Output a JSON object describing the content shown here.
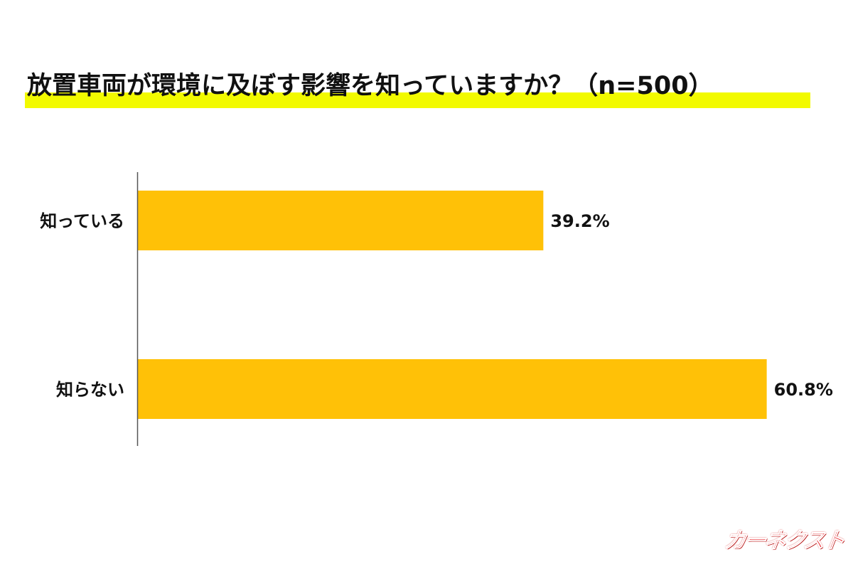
{
  "title": "放置車両が環境に及ぼす影響を知っていますか？（n=500）",
  "logo_text": "カーネクスト",
  "colors": {
    "bar": "#FFC107",
    "highlight": "#F2FA00",
    "axis": "#555555",
    "logo": "#E8141B"
  },
  "chart_data": {
    "type": "bar",
    "orientation": "horizontal",
    "title": "放置車両が環境に及ぼす影響を知っていますか？（n=500）",
    "categories": [
      "知っている",
      "知らない"
    ],
    "values": [
      39.2,
      60.8
    ],
    "value_labels": [
      "39.2%",
      "60.8%"
    ],
    "xlim": [
      0,
      62
    ],
    "grid": false,
    "legend": "none"
  }
}
